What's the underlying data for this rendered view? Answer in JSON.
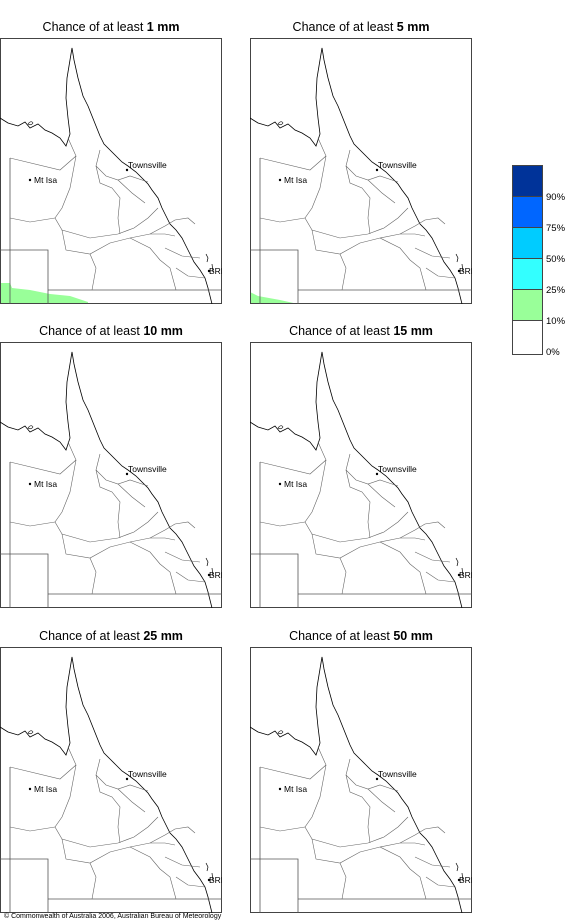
{
  "panels": [
    {
      "prefix": "Chance of at least",
      "amount": "1 mm",
      "shade": "large"
    },
    {
      "prefix": "Chance of at least",
      "amount": "5 mm",
      "shade": "small"
    },
    {
      "prefix": "Chance of at least",
      "amount": "10 mm",
      "shade": "none"
    },
    {
      "prefix": "Chance of at least",
      "amount": "15 mm",
      "shade": "none"
    },
    {
      "prefix": "Chance of at least",
      "amount": "25 mm",
      "shade": "none"
    },
    {
      "prefix": "Chance of at least",
      "amount": "50 mm",
      "shade": "none"
    }
  ],
  "places": {
    "mt_isa": "Mt Isa",
    "townsville": "Townsville",
    "brisbane": "BRIS"
  },
  "legend": {
    "colors": [
      "#003399",
      "#0066ff",
      "#00ccff",
      "#33ffff",
      "#99ff99",
      "#ffffff"
    ],
    "labels": [
      "90%",
      "75%",
      "50%",
      "25%",
      "10%",
      "0%"
    ]
  },
  "footer": "© Commonwealth of Australia 2006, Australian Bureau of Meteorology"
}
